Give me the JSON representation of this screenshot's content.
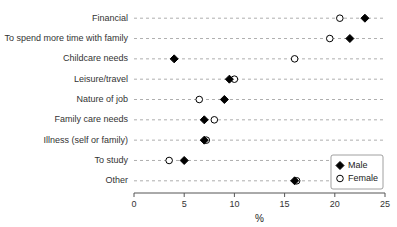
{
  "chart_data": {
    "type": "dot",
    "orientation": "horizontal",
    "categories": [
      "Financial",
      "To spend more time with family",
      "Childcare needs",
      "Leisure/travel",
      "Nature of job",
      "Family care needs",
      "Illness (self or family)",
      "To study",
      "Other"
    ],
    "series": [
      {
        "name": "Male",
        "color": "black",
        "marker": "diamond",
        "values": [
          23.0,
          21.5,
          4.0,
          9.5,
          9.0,
          7.0,
          7.0,
          5.0,
          16.0
        ]
      },
      {
        "name": "Female",
        "color": "white",
        "marker": "circle",
        "values": [
          20.5,
          19.5,
          16.0,
          10.0,
          6.5,
          8.0,
          7.2,
          3.5,
          16.2
        ]
      }
    ],
    "xlabel": "%",
    "xlim": [
      0,
      25
    ],
    "xticks": [
      0,
      5,
      10,
      15,
      20,
      25
    ],
    "grid": false,
    "legend": "lower right"
  }
}
